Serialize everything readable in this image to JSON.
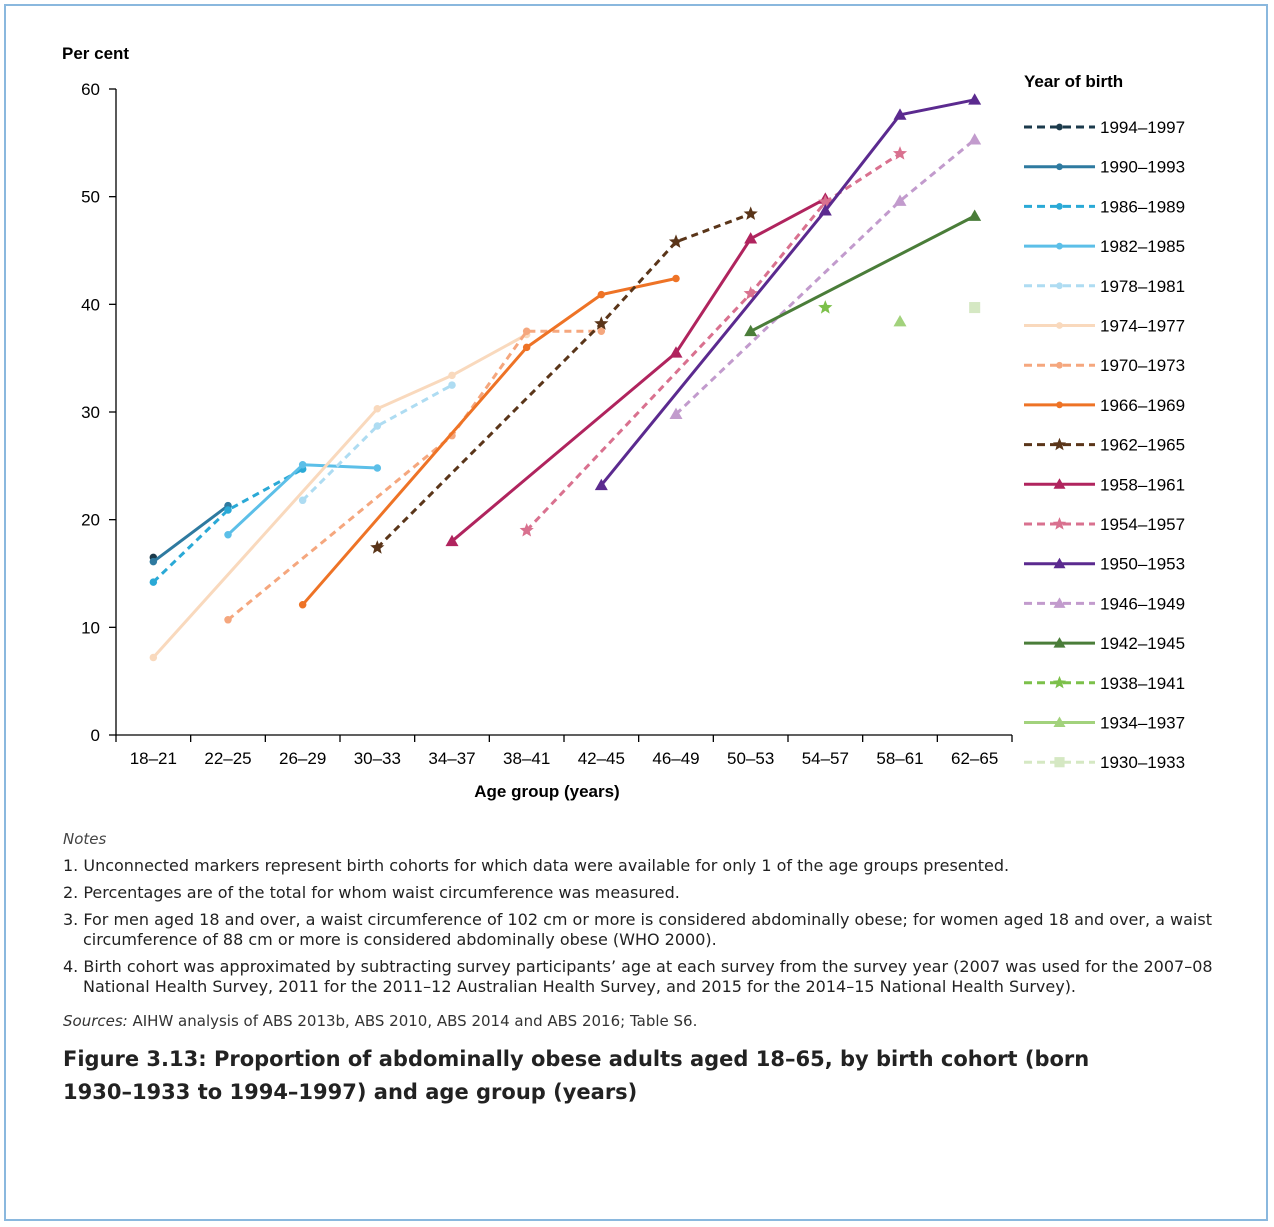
{
  "chart_data": {
    "type": "line",
    "ylabel": "Per cent",
    "xlabel": "Age group (years)",
    "ylim": [
      0,
      60
    ],
    "yticks": [
      0,
      10,
      20,
      30,
      40,
      50,
      60
    ],
    "grid": false,
    "legend_title": "Year of birth",
    "legend_position": "right",
    "categories": [
      "18–21",
      "22–25",
      "26–29",
      "30–33",
      "34–37",
      "38–41",
      "42–45",
      "46–49",
      "50–53",
      "54–57",
      "58–61",
      "62–65"
    ],
    "series": [
      {
        "name": "1994–1997",
        "color": "#1b3a4b",
        "dash": true,
        "marker": "circle",
        "values": [
          16.5,
          null,
          null,
          null,
          null,
          null,
          null,
          null,
          null,
          null,
          null,
          null
        ]
      },
      {
        "name": "1990–1993",
        "color": "#2e7aa0",
        "dash": false,
        "marker": "circle",
        "values": [
          16.1,
          21.3,
          null,
          null,
          null,
          null,
          null,
          null,
          null,
          null,
          null,
          null
        ]
      },
      {
        "name": "1986–1989",
        "color": "#2aa9d6",
        "dash": true,
        "marker": "circle",
        "values": [
          14.2,
          20.9,
          24.7,
          null,
          null,
          null,
          null,
          null,
          null,
          null,
          null,
          null
        ]
      },
      {
        "name": "1982–1985",
        "color": "#5cbfe8",
        "dash": false,
        "marker": "circle",
        "values": [
          null,
          18.6,
          25.1,
          24.8,
          null,
          null,
          null,
          null,
          null,
          null,
          null,
          null
        ]
      },
      {
        "name": "1978–1981",
        "color": "#aedcf2",
        "dash": true,
        "marker": "circle",
        "values": [
          null,
          null,
          21.8,
          28.7,
          32.5,
          null,
          null,
          null,
          null,
          null,
          null,
          null
        ]
      },
      {
        "name": "1974–1977",
        "color": "#f9d9bd",
        "dash": false,
        "marker": "circle",
        "values": [
          7.2,
          null,
          null,
          30.3,
          33.4,
          37.2,
          null,
          null,
          null,
          null,
          null,
          null
        ]
      },
      {
        "name": "1970–1973",
        "color": "#f5a77e",
        "dash": true,
        "marker": "circle",
        "values": [
          null,
          10.7,
          null,
          null,
          27.8,
          37.5,
          37.5,
          null,
          null,
          null,
          null,
          null
        ]
      },
      {
        "name": "1966–1969",
        "color": "#ee7326",
        "dash": false,
        "marker": "circle",
        "values": [
          null,
          null,
          12.1,
          null,
          null,
          36.0,
          40.9,
          42.4,
          null,
          null,
          null,
          null
        ]
      },
      {
        "name": "1962–1965",
        "color": "#5a3519",
        "dash": true,
        "marker": "star",
        "values": [
          null,
          null,
          null,
          17.4,
          null,
          null,
          38.2,
          45.8,
          48.4,
          null,
          null,
          null
        ]
      },
      {
        "name": "1958–1961",
        "color": "#b0245e",
        "dash": false,
        "marker": "triangle",
        "values": [
          null,
          null,
          null,
          null,
          18.0,
          null,
          null,
          35.5,
          46.1,
          49.8,
          null,
          null
        ]
      },
      {
        "name": "1954–1957",
        "color": "#d9718f",
        "dash": true,
        "marker": "star",
        "values": [
          null,
          null,
          null,
          null,
          null,
          19.0,
          null,
          null,
          41.0,
          49.5,
          54.0,
          null
        ]
      },
      {
        "name": "1950–1953",
        "color": "#5b2a8f",
        "dash": false,
        "marker": "triangle",
        "values": [
          null,
          null,
          null,
          null,
          null,
          null,
          23.2,
          null,
          null,
          48.7,
          57.6,
          59.0
        ]
      },
      {
        "name": "1946–1949",
        "color": "#c29bcd",
        "dash": true,
        "marker": "triangle",
        "values": [
          null,
          null,
          null,
          null,
          null,
          null,
          null,
          29.8,
          null,
          null,
          49.6,
          55.3
        ]
      },
      {
        "name": "1942–1945",
        "color": "#4a7d39",
        "dash": false,
        "marker": "triangle",
        "values": [
          null,
          null,
          null,
          null,
          null,
          null,
          null,
          null,
          37.5,
          null,
          null,
          48.2
        ]
      },
      {
        "name": "1938–1941",
        "color": "#7cc04a",
        "dash": true,
        "marker": "star",
        "values": [
          null,
          null,
          null,
          null,
          null,
          null,
          null,
          null,
          null,
          39.7,
          null,
          null
        ]
      },
      {
        "name": "1934–1937",
        "color": "#a2d27c",
        "dash": false,
        "marker": "triangle",
        "values": [
          null,
          null,
          null,
          null,
          null,
          null,
          null,
          null,
          null,
          null,
          38.4,
          null
        ]
      },
      {
        "name": "1930–1933",
        "color": "#d5e8c3",
        "dash": true,
        "marker": "square",
        "values": [
          null,
          null,
          null,
          null,
          null,
          null,
          null,
          null,
          null,
          null,
          null,
          39.7
        ]
      }
    ]
  },
  "notes": {
    "heading": "Notes",
    "items": [
      "1. Unconnected markers represent birth cohorts for which data were available for only 1 of the age groups presented.",
      "2. Percentages are of the total for whom waist circumference was measured.",
      "3. For men aged 18 and over, a waist circumference of 102 cm or more is considered abdominally obese; for women aged 18 and over, a waist circumference of 88 cm or more is considered abdominally obese (WHO 2000).",
      "4. Birth cohort was approximated by subtracting survey participants’ age at each survey from the survey year (2007 was used for the 2007–08 National Health Survey, 2011 for the 2011–12 Australian Health Survey, and 2015 for the 2014–15 National Health Survey)."
    ],
    "sources_label": "Sources:",
    "sources_text": " AIHW analysis of ABS 2013b, ABS 2010, ABS 2014 and ABS 2016; Table S6."
  },
  "caption": "Figure 3.13: Proportion of abdominally obese adults aged 18–65, by birth cohort (born 1930–1933 to 1994–1997) and age group (years)"
}
